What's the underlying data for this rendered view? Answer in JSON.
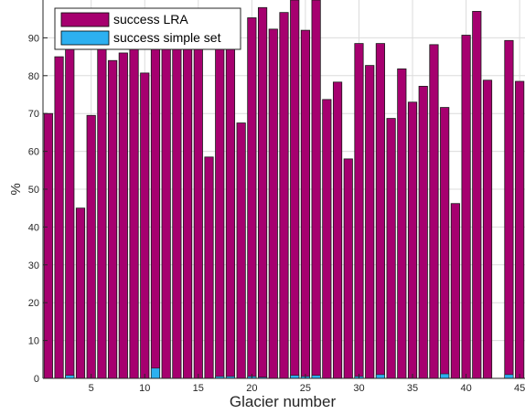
{
  "chart_data": {
    "type": "bar",
    "xlabel": "Glacier number",
    "ylabel": "%",
    "xlim": [
      0.5,
      45.5
    ],
    "ylim": [
      0,
      100
    ],
    "grid": true,
    "legend_position": "top-left",
    "xticks": [
      5,
      10,
      15,
      20,
      25,
      30,
      35,
      40,
      45
    ],
    "yticks": [
      0,
      10,
      20,
      30,
      40,
      50,
      60,
      70,
      80,
      90
    ],
    "x": [
      1,
      2,
      3,
      4,
      5,
      6,
      7,
      8,
      9,
      10,
      11,
      12,
      13,
      14,
      15,
      16,
      17,
      18,
      19,
      20,
      21,
      22,
      23,
      24,
      25,
      26,
      27,
      28,
      29,
      30,
      31,
      32,
      33,
      34,
      35,
      36,
      37,
      38,
      39,
      40,
      41,
      42,
      43,
      44,
      45
    ],
    "series": [
      {
        "name": "success LRA",
        "color": "#A6006F",
        "values": [
          70.0,
          85.0,
          88.0,
          45.0,
          69.5,
          89.0,
          84.0,
          86.0,
          97.5,
          80.7,
          88.0,
          96.5,
          88.0,
          88.0,
          88.0,
          58.5,
          88.0,
          88.0,
          67.5,
          95.3,
          98.0,
          92.3,
          96.7,
          100.0,
          92.0,
          100.0,
          73.7,
          78.3,
          58.0,
          88.5,
          82.7,
          88.5,
          68.7,
          81.8,
          73.0,
          77.2,
          88.2,
          71.6,
          46.2,
          90.7,
          97.0,
          78.8,
          0,
          89.3,
          78.5
        ]
      },
      {
        "name": "success simple set",
        "color": "#2DB0F0",
        "values": [
          0.0,
          0.0,
          0.8,
          0.0,
          0.0,
          0.0,
          0.0,
          0.0,
          0.0,
          0.0,
          2.7,
          0.0,
          0.0,
          0.0,
          0.0,
          0.0,
          0.5,
          0.5,
          0.0,
          0.5,
          0.3,
          0.0,
          0.0,
          0.8,
          0.5,
          0.8,
          0.0,
          0.0,
          0.0,
          0.5,
          0.0,
          1.0,
          0.0,
          0.0,
          0.0,
          0.0,
          0.0,
          1.2,
          0.0,
          0.0,
          0.0,
          0.0,
          0.0,
          1.0,
          0.0
        ]
      }
    ]
  }
}
